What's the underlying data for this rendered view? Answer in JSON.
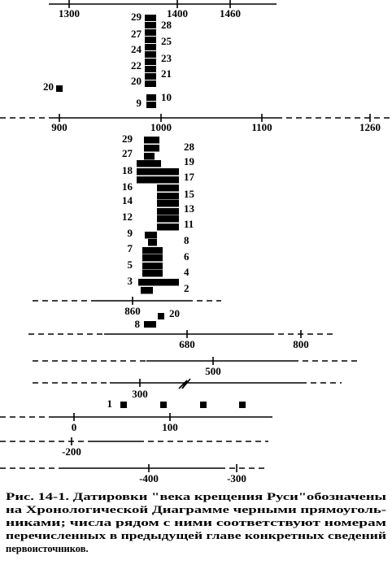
{
  "figure": {
    "scale_1": {
      "ticks": [
        "1300",
        "1400",
        "1460"
      ]
    },
    "block_1": {
      "left": [
        "29",
        "27",
        "24",
        "22",
        "20",
        "9"
      ],
      "right": [
        "28",
        "25",
        "23",
        "21",
        "10"
      ],
      "outlier": "20"
    },
    "scale_2": {
      "ticks": [
        "900",
        "1000",
        "1100",
        "1260"
      ]
    },
    "block_2": {
      "left": [
        "29",
        "27",
        "18",
        "16",
        "14",
        "12",
        "9",
        "7",
        "5",
        "3"
      ],
      "right": [
        "28",
        "19",
        "17",
        "15",
        "13",
        "11",
        "8",
        "6",
        "4",
        "2"
      ]
    },
    "scale_3": {
      "ticks": [
        "860"
      ]
    },
    "block_3": {
      "labels": [
        "20",
        "8"
      ]
    },
    "scale_4": {
      "ticks": [
        "680",
        "800"
      ]
    },
    "scale_5": {
      "ticks": [
        "500"
      ]
    },
    "scale_6": {
      "ticks": [
        "300"
      ]
    },
    "block_4": {
      "labels": [
        "1"
      ]
    },
    "scale_7": {
      "ticks": [
        "0",
        "100"
      ]
    },
    "scale_8": {
      "ticks": [
        "-200"
      ]
    },
    "scale_9": {
      "ticks": [
        "-400",
        "-300"
      ]
    }
  },
  "caption": {
    "lines": [
      "Рис. 14-1. Датировки \"века крещения Руси\"обозначены",
      "на Хронологической Диаграмме черными прямоуголь-",
      "никами; числа рядом с ними соответствуют номерам",
      "перечисленных в предыдущей главе конкретных сведений",
      "первоисточников."
    ]
  }
}
